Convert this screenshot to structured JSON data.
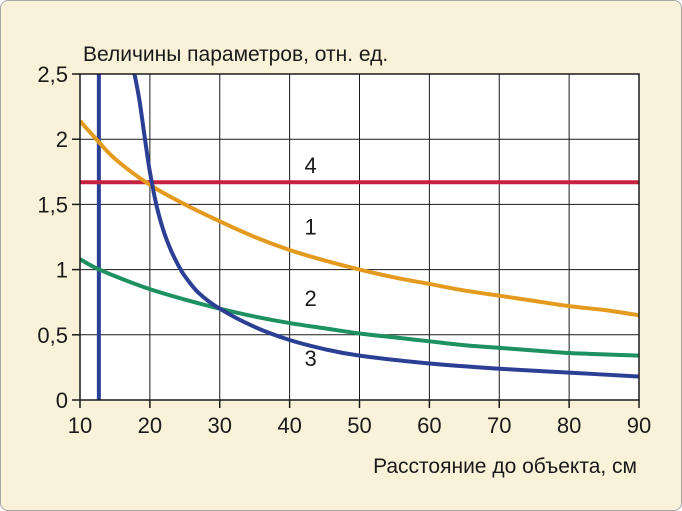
{
  "chart_data": {
    "type": "line",
    "title": "",
    "ylabel": "Величины параметров, отн. ед.",
    "xlabel": "Расстояние до объекта, см",
    "xlim": [
      10,
      90
    ],
    "ylim": [
      0,
      2.5
    ],
    "x_ticks": [
      {
        "value": 10,
        "label": "10"
      },
      {
        "value": 20,
        "label": "20"
      },
      {
        "value": 30,
        "label": "30"
      },
      {
        "value": 40,
        "label": "40"
      },
      {
        "value": 50,
        "label": "50"
      },
      {
        "value": 60,
        "label": "60"
      },
      {
        "value": 70,
        "label": "70"
      },
      {
        "value": 80,
        "label": "80"
      },
      {
        "value": 90,
        "label": "90"
      }
    ],
    "y_ticks": [
      {
        "value": 0,
        "label": "0"
      },
      {
        "value": 0.5,
        "label": "0,5"
      },
      {
        "value": 1,
        "label": "1"
      },
      {
        "value": 1.5,
        "label": "1,5"
      },
      {
        "value": 2,
        "label": "2"
      },
      {
        "value": 2.5,
        "label": "2,5"
      }
    ],
    "grid": true,
    "series": [
      {
        "name": "1",
        "color": "#e39a1e",
        "label_at": [
          43,
          1.27
        ],
        "points": [
          [
            10,
            2.14
          ],
          [
            12,
            2.02
          ],
          [
            15,
            1.85
          ],
          [
            20,
            1.65
          ],
          [
            25,
            1.5
          ],
          [
            30,
            1.37
          ],
          [
            35,
            1.25
          ],
          [
            40,
            1.15
          ],
          [
            45,
            1.07
          ],
          [
            50,
            1.0
          ],
          [
            55,
            0.94
          ],
          [
            60,
            0.89
          ],
          [
            65,
            0.84
          ],
          [
            70,
            0.8
          ],
          [
            75,
            0.76
          ],
          [
            80,
            0.72
          ],
          [
            85,
            0.69
          ],
          [
            90,
            0.65
          ]
        ]
      },
      {
        "name": "2",
        "color": "#1d9160",
        "label_at": [
          43,
          0.72
        ],
        "points": [
          [
            10,
            1.08
          ],
          [
            12,
            1.02
          ],
          [
            15,
            0.95
          ],
          [
            20,
            0.85
          ],
          [
            25,
            0.77
          ],
          [
            30,
            0.7
          ],
          [
            35,
            0.64
          ],
          [
            40,
            0.59
          ],
          [
            45,
            0.55
          ],
          [
            50,
            0.51
          ],
          [
            55,
            0.48
          ],
          [
            60,
            0.45
          ],
          [
            65,
            0.42
          ],
          [
            70,
            0.4
          ],
          [
            75,
            0.38
          ],
          [
            80,
            0.36
          ],
          [
            85,
            0.35
          ],
          [
            90,
            0.34
          ]
        ]
      },
      {
        "name": "3",
        "color": "#2b3f95",
        "label_at": [
          43,
          0.26
        ],
        "points": [
          [
            17.8,
            2.5
          ],
          [
            18.5,
            2.3
          ],
          [
            19.3,
            2.0
          ],
          [
            20,
            1.75
          ],
          [
            21,
            1.48
          ],
          [
            22,
            1.29
          ],
          [
            23,
            1.15
          ],
          [
            24,
            1.04
          ],
          [
            25,
            0.95
          ],
          [
            27,
            0.82
          ],
          [
            30,
            0.7
          ],
          [
            35,
            0.56
          ],
          [
            40,
            0.46
          ],
          [
            45,
            0.39
          ],
          [
            50,
            0.34
          ],
          [
            60,
            0.28
          ],
          [
            70,
            0.24
          ],
          [
            80,
            0.21
          ],
          [
            90,
            0.18
          ]
        ]
      },
      {
        "name": "4",
        "color": "#c8203f",
        "label_at": [
          43,
          1.74
        ],
        "points": [
          [
            10,
            1.67
          ],
          [
            90,
            1.67
          ]
        ]
      }
    ],
    "vertical_line": {
      "x": 12.7,
      "color": "#2b3f95"
    }
  }
}
